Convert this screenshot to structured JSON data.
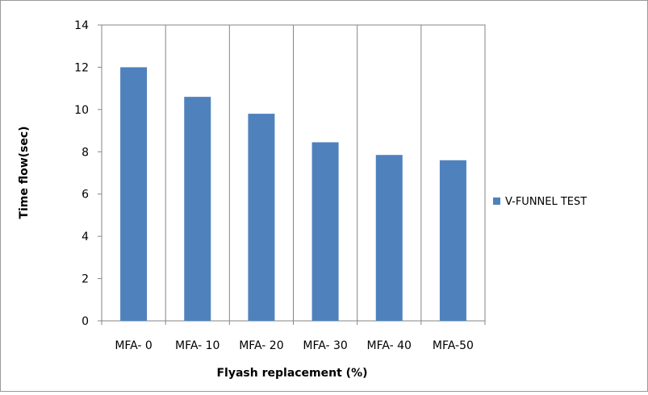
{
  "chart_data": {
    "type": "bar",
    "title": "",
    "xlabel": "Flyash replacement (%)",
    "ylabel": "Time flow(sec)",
    "categories": [
      "MFA- 0",
      "MFA- 10",
      "MFA- 20",
      "MFA- 30",
      "MFA- 40",
      "MFA-50"
    ],
    "series": [
      {
        "name": "V-FUNNEL TEST",
        "values": [
          12,
          10.6,
          9.8,
          8.45,
          7.85,
          7.6
        ],
        "color": "#4F81BD"
      }
    ],
    "ylim": [
      0,
      14
    ],
    "yticks": [
      0,
      2,
      4,
      6,
      8,
      10,
      12,
      14
    ],
    "grid": {
      "vertical_category_lines": true,
      "horizontal": false
    },
    "legend": {
      "position": "right"
    }
  }
}
